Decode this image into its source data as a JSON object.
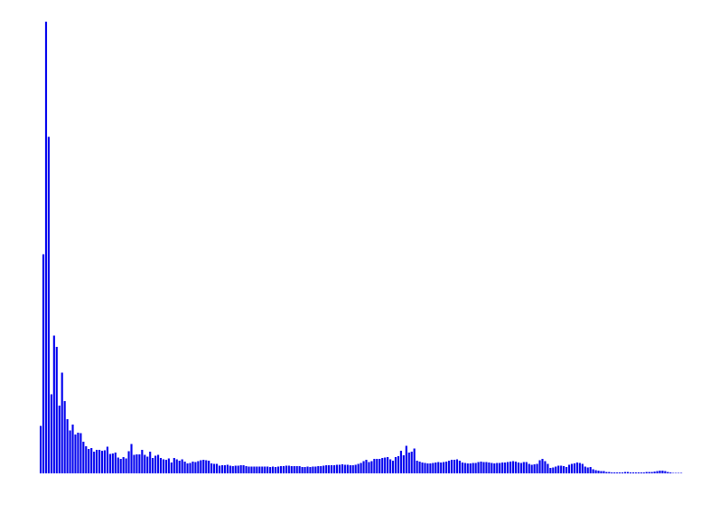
{
  "chart_data": {
    "type": "bar",
    "title": "",
    "xlabel": "",
    "ylabel": "",
    "axes_visible": false,
    "grid": false,
    "legend": "none",
    "color": "#0000ee",
    "ylim": [
      0,
      100
    ],
    "values": [
      10.5,
      48.5,
      100,
      74.5,
      17.5,
      30.5,
      28,
      15,
      22.3,
      16,
      12,
      9.5,
      10.8,
      8.6,
      9,
      8.9,
      7,
      6,
      5.4,
      5.6,
      4.8,
      5.2,
      5.2,
      5,
      5.1,
      5.9,
      4.3,
      4.4,
      4.6,
      3.5,
      3.2,
      3.6,
      3.3,
      4.9,
      6.5,
      4.1,
      4.2,
      4.2,
      5.2,
      4.1,
      3.7,
      4.8,
      3.4,
      3.9,
      4.1,
      3.4,
      3.1,
      3,
      3.3,
      2.4,
      3.4,
      3.1,
      2.8,
      3.1,
      2.6,
      2.2,
      2.3,
      2.6,
      2.5,
      2.7,
      2.9,
      3,
      2.9,
      2.8,
      2.2,
      2.1,
      2.1,
      1.7,
      1.8,
      1.8,
      1.9,
      1.7,
      1.6,
      1.7,
      1.7,
      1.8,
      1.8,
      1.6,
      1.5,
      1.5,
      1.5,
      1.5,
      1.5,
      1.5,
      1.5,
      1.5,
      1.4,
      1.5,
      1.4,
      1.5,
      1.6,
      1.6,
      1.7,
      1.7,
      1.6,
      1.6,
      1.6,
      1.6,
      1.4,
      1.4,
      1.5,
      1.4,
      1.5,
      1.5,
      1.6,
      1.6,
      1.7,
      1.8,
      1.8,
      1.8,
      1.8,
      1.9,
      1.9,
      2,
      1.9,
      1.9,
      1.8,
      1.8,
      1.9,
      2.1,
      2.3,
      2.7,
      3,
      2.5,
      2.7,
      3.2,
      3.2,
      3.2,
      3.4,
      3.5,
      3.6,
      3.1,
      2.8,
      3.6,
      3.8,
      5,
      4,
      6.1,
      4.6,
      4.8,
      5.5,
      2.8,
      2.6,
      2.4,
      2.3,
      2.2,
      2.2,
      2.3,
      2.4,
      2.5,
      2.4,
      2.5,
      2.6,
      2.8,
      3,
      3,
      3.1,
      2.8,
      2.4,
      2.3,
      2.2,
      2.2,
      2.3,
      2.3,
      2.5,
      2.6,
      2.5,
      2.5,
      2.4,
      2.3,
      2.2,
      2.3,
      2.3,
      2.4,
      2.4,
      2.5,
      2.6,
      2.7,
      2.6,
      2.4,
      2.3,
      2.5,
      2.5,
      2.1,
      1.9,
      2,
      2.1,
      2.9,
      3.2,
      2.7,
      2.1,
      1.2,
      1.3,
      1.5,
      1.7,
      1.7,
      1.6,
      1.4,
      1.9,
      2.1,
      2.2,
      2.4,
      2.3,
      2.1,
      1.5,
      1.3,
      1.4,
      0.9,
      0.7,
      0.6,
      0.5,
      0.5,
      0.3,
      0.3,
      0.2,
      0.2,
      0.2,
      0.2,
      0.2,
      0.3,
      0.3,
      0.2,
      0.2,
      0.2,
      0.2,
      0.2,
      0.2,
      0.3,
      0.3,
      0.3,
      0.4,
      0.5,
      0.6,
      0.6,
      0.5,
      0.3,
      0.2,
      0.1,
      0.1,
      0.1,
      0.1
    ]
  }
}
